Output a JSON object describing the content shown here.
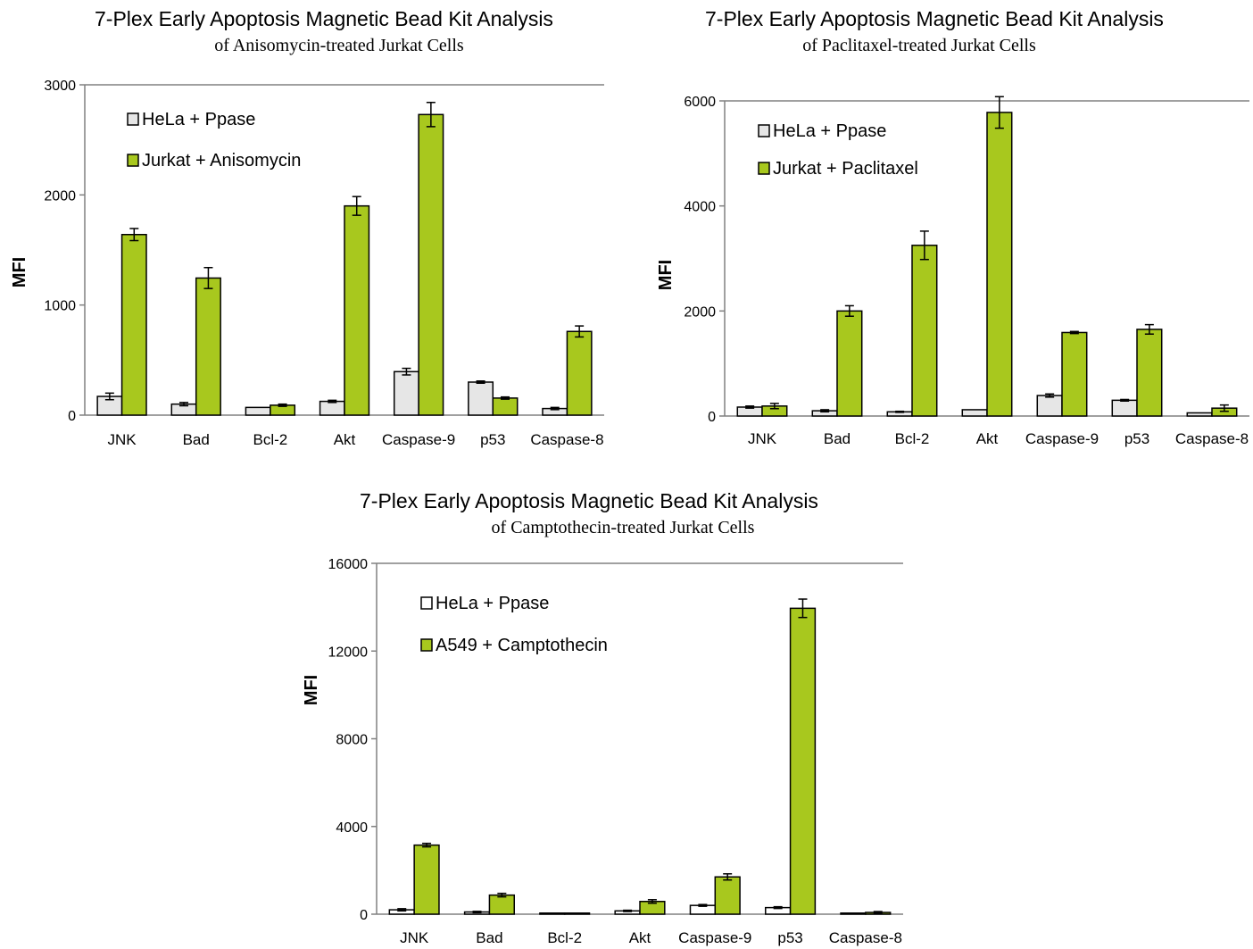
{
  "chart_data": [
    {
      "type": "bar",
      "title": "7-Plex Early Apoptosis Magnetic Bead Kit Analysis",
      "subtitle": "of Anisomycin-treated Jurkat Cells",
      "ylabel": "MFI",
      "xlabel": "",
      "ylim": [
        0,
        3000
      ],
      "yticks": [
        0,
        1000,
        2000,
        3000
      ],
      "grid": false,
      "legend_position": "top-left",
      "categories": [
        "JNK",
        "Bad",
        "Bcl-2",
        "Akt",
        "Caspase-9",
        "p53",
        "Caspase-8"
      ],
      "series": [
        {
          "name": "HeLa + Ppase",
          "color": "#e6e6e6",
          "values": [
            170,
            100,
            70,
            125,
            395,
            300,
            60
          ],
          "errors": [
            30,
            15,
            0,
            10,
            30,
            10,
            10
          ]
        },
        {
          "name": "Jurkat + Anisomycin",
          "color": "#a8c81e",
          "values": [
            1640,
            1245,
            90,
            1900,
            2730,
            155,
            760
          ],
          "errors": [
            55,
            95,
            10,
            85,
            110,
            10,
            50
          ]
        }
      ]
    },
    {
      "type": "bar",
      "title": "7-Plex Early Apoptosis Magnetic Bead Kit Analysis",
      "subtitle": "of Paclitaxel-treated Jurkat Cells",
      "ylabel": "MFI",
      "xlabel": "",
      "ylim": [
        0,
        6000
      ],
      "yticks": [
        0,
        2000,
        4000,
        6000
      ],
      "grid": false,
      "legend_position": "top-left",
      "categories": [
        "JNK",
        "Bad",
        "Bcl-2",
        "Akt",
        "Caspase-9",
        "p53",
        "Caspase-8"
      ],
      "series": [
        {
          "name": "HeLa + Ppase",
          "color": "#e6e6e6",
          "values": [
            170,
            100,
            80,
            120,
            390,
            300,
            60
          ],
          "errors": [
            20,
            20,
            10,
            0,
            30,
            15,
            0
          ]
        },
        {
          "name": "Jurkat + Paclitaxel",
          "color": "#a8c81e",
          "values": [
            190,
            2000,
            3250,
            5780,
            1590,
            1650,
            150
          ],
          "errors": [
            50,
            100,
            270,
            300,
            20,
            90,
            60
          ]
        }
      ]
    },
    {
      "type": "bar",
      "title": "7-Plex Early Apoptosis Magnetic Bead Kit Analysis",
      "subtitle": "of Camptothecin-treated Jurkat Cells",
      "ylabel": "MFI",
      "xlabel": "",
      "ylim": [
        0,
        16000
      ],
      "yticks": [
        0,
        4000,
        8000,
        12000,
        16000
      ],
      "grid": false,
      "legend_position": "top-left",
      "categories": [
        "JNK",
        "Bad",
        "Bcl-2",
        "Akt",
        "Caspase-9",
        "p53",
        "Caspase-8"
      ],
      "series": [
        {
          "name": "HeLa + Ppase",
          "color": "#ffffff",
          "values": [
            200,
            100,
            50,
            150,
            400,
            300,
            50
          ],
          "errors": [
            50,
            30,
            0,
            30,
            40,
            40,
            0
          ]
        },
        {
          "name": "A549 + Camptothecin",
          "color": "#a8c81e",
          "values": [
            3150,
            870,
            50,
            580,
            1700,
            13950,
            80
          ],
          "errors": [
            80,
            80,
            0,
            80,
            140,
            420,
            40
          ]
        }
      ]
    }
  ]
}
